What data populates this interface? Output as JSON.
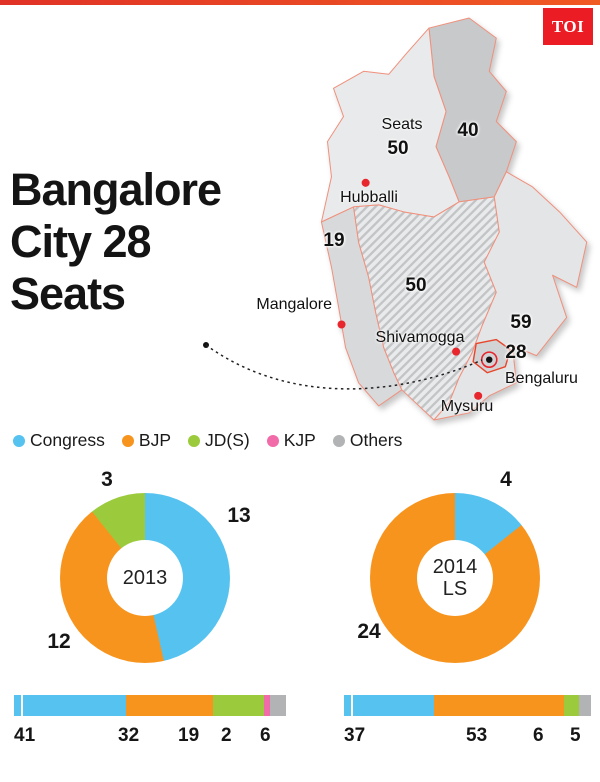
{
  "brand": {
    "logo_text": "TOI",
    "logo_bg": "#EC1C24",
    "topbar_color": "#E8422D"
  },
  "title": {
    "line1": "Bangalore",
    "line2": "City 28",
    "line3": "Seats"
  },
  "map": {
    "seats_caption": "Seats",
    "seats": {
      "northwest": "50",
      "northeast": "40",
      "coastal": "19",
      "central": "50",
      "southeast": "59",
      "bengaluru": "28"
    },
    "cities": {
      "hubballi": "Hubballi",
      "mangalore": "Mangalore",
      "shivamogga": "Shivamogga",
      "mysuru": "Mysuru",
      "bengaluru": "Bengaluru"
    }
  },
  "party_colors": {
    "Congress": "#56C2F0",
    "BJP": "#F7941E",
    "JD(S)": "#9BCB3C",
    "KJP": "#F16BA9",
    "Others": "#B1B3B5"
  },
  "legend": {
    "items": [
      {
        "label": "Congress",
        "color": "#56C2F0"
      },
      {
        "label": "BJP",
        "color": "#F7941E"
      },
      {
        "label": "JD(S)",
        "color": "#9BCB3C"
      },
      {
        "label": "KJP",
        "color": "#F16BA9"
      },
      {
        "label": "Others",
        "color": "#B1B3B5"
      }
    ]
  },
  "chart_data": [
    {
      "id": "donut-2013",
      "type": "pie",
      "donut": true,
      "center_label": "2013",
      "center_label_lines": [
        "2013"
      ],
      "total": 28,
      "segments": [
        {
          "label": "Congress",
          "value": 13
        },
        {
          "label": "BJP",
          "value": 12
        },
        {
          "label": "JD(S)",
          "value": 3
        }
      ]
    },
    {
      "id": "donut-2014-ls",
      "type": "pie",
      "donut": true,
      "center_label": "2014 LS",
      "center_label_lines": [
        "2014",
        "LS"
      ],
      "total": 28,
      "segments": [
        {
          "label": "Congress",
          "value": 4
        },
        {
          "label": "BJP",
          "value": 24
        }
      ]
    },
    {
      "id": "stacked-bar-2013",
      "type": "bar",
      "stacked": true,
      "orientation": "horizontal",
      "segments": [
        {
          "label": "Congress",
          "value": 41
        },
        {
          "label": "BJP",
          "value": 32
        },
        {
          "label": "JD(S)",
          "value": 19
        },
        {
          "label": "KJP",
          "value": 2
        },
        {
          "label": "Others",
          "value": 6
        }
      ]
    },
    {
      "id": "stacked-bar-2014",
      "type": "bar",
      "stacked": true,
      "orientation": "horizontal",
      "segments": [
        {
          "label": "Congress",
          "value": 37
        },
        {
          "label": "BJP",
          "value": 53
        },
        {
          "label": "JD(S)",
          "value": 6
        },
        {
          "label": "Others",
          "value": 5
        }
      ]
    }
  ]
}
